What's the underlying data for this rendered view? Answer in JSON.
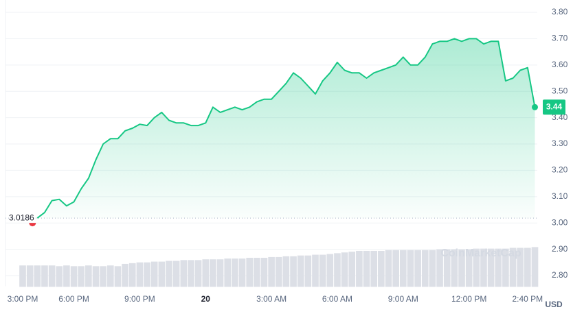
{
  "chart_data": {
    "type": "area",
    "categories": [
      "3:00 PM",
      null,
      null,
      null,
      null,
      null,
      null,
      "6:00 PM",
      null,
      null,
      null,
      null,
      null,
      null,
      null,
      null,
      "9:00 PM",
      null,
      null,
      null,
      null,
      null,
      null,
      null,
      null,
      "20",
      null,
      null,
      null,
      null,
      null,
      null,
      null,
      null,
      "3:00 AM",
      null,
      null,
      null,
      null,
      null,
      null,
      null,
      null,
      "6:00 AM",
      null,
      null,
      null,
      null,
      null,
      null,
      null,
      null,
      "9:00 AM",
      null,
      null,
      null,
      null,
      null,
      null,
      null,
      null,
      "12:00 PM",
      null,
      null,
      null,
      null,
      null,
      null,
      null,
      "2:40 PM",
      null
    ],
    "series": [
      {
        "color": "#16c784",
        "values": [
          null,
          null,
          3.0186,
          3.04,
          3.085,
          3.09,
          3.065,
          3.08,
          3.13,
          3.17,
          3.24,
          3.3,
          3.32,
          3.32,
          3.35,
          3.36,
          3.375,
          3.37,
          3.4,
          3.42,
          3.39,
          3.38,
          3.38,
          3.37,
          3.37,
          3.38,
          3.44,
          3.42,
          3.43,
          3.44,
          3.43,
          3.44,
          3.46,
          3.47,
          3.47,
          3.5,
          3.53,
          3.57,
          3.55,
          3.52,
          3.49,
          3.54,
          3.57,
          3.61,
          3.58,
          3.57,
          3.57,
          3.55,
          3.57,
          3.58,
          3.59,
          3.6,
          3.63,
          3.6,
          3.6,
          3.63,
          3.68,
          3.69,
          3.69,
          3.7,
          3.69,
          3.7,
          3.7,
          3.68,
          3.69,
          3.69,
          3.54,
          3.55,
          3.58,
          3.59,
          3.44
        ]
      }
    ],
    "volume": [
      28,
      28,
      28,
      28,
      28,
      27,
      28,
      27,
      27,
      28,
      27,
      27,
      28,
      27,
      30,
      31,
      32,
      32,
      33,
      33,
      34,
      34,
      35,
      35,
      35,
      36,
      36,
      36,
      37,
      37,
      37,
      38,
      38,
      38,
      39,
      39,
      40,
      40,
      41,
      41,
      42,
      42,
      43,
      44,
      45,
      46,
      47,
      47,
      47,
      47,
      48,
      48,
      48,
      48,
      48,
      48,
      48,
      49,
      49,
      49,
      49,
      49,
      50,
      50,
      50,
      50,
      50,
      51,
      51,
      51,
      52
    ],
    "volume_color": "#dcdfe6",
    "ylim": [
      2.76,
      3.83
    ],
    "yticks": [
      {
        "value": 2.8,
        "label": "2.80"
      },
      {
        "value": 2.9,
        "label": "2.90"
      },
      {
        "value": 3.0,
        "label": "3.00"
      },
      {
        "value": 3.1,
        "label": "3.10"
      },
      {
        "value": 3.2,
        "label": "3.20"
      },
      {
        "value": 3.3,
        "label": "3.30"
      },
      {
        "value": 3.4,
        "label": "3.40"
      },
      {
        "value": 3.5,
        "label": "3.50"
      },
      {
        "value": 3.6,
        "label": "3.60"
      },
      {
        "value": 3.7,
        "label": "3.70"
      },
      {
        "value": 3.8,
        "label": "3.80"
      }
    ],
    "grid": true,
    "baseline": {
      "value": 3.0186,
      "label": "3.0186",
      "color": "#ea3943"
    },
    "current_label": "3.44",
    "unit": "USD",
    "watermark": "CoinMarketCap"
  }
}
